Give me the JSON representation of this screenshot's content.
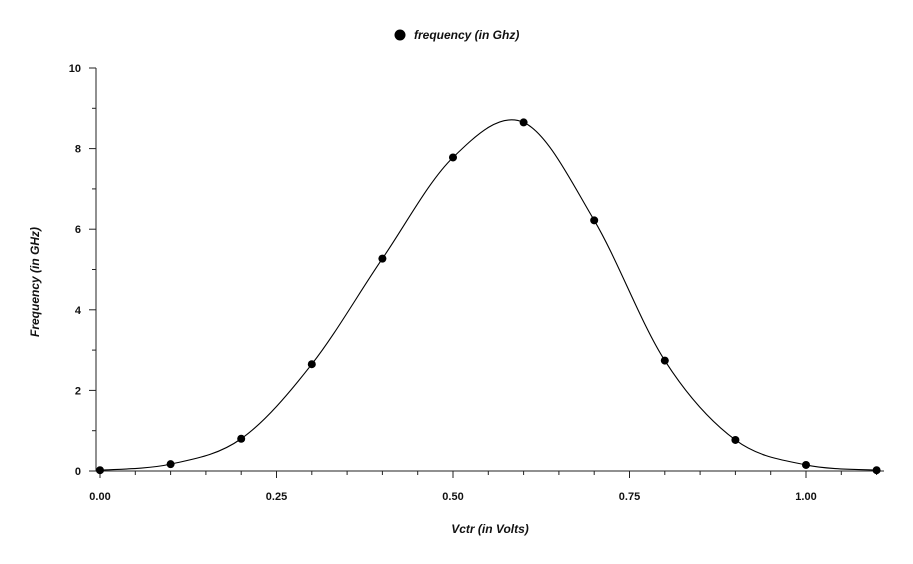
{
  "chart_data": {
    "type": "scatter",
    "title": "",
    "xlabel": "Vctr (in Volts)",
    "ylabel": "Frequency (in GHz)",
    "xlim": [
      0,
      1.1
    ],
    "ylim": [
      0,
      10
    ],
    "xticks": [
      0.0,
      0.25,
      0.5,
      0.75,
      1.0
    ],
    "xtick_labels": [
      "0.00",
      "0.25",
      "0.50",
      "0.75",
      "1.00"
    ],
    "yticks": [
      0,
      2,
      4,
      6,
      8,
      10
    ],
    "ytick_labels": [
      "0",
      "2",
      "4",
      "6",
      "8",
      "10"
    ],
    "grid": false,
    "legend_position": "top-center",
    "series": [
      {
        "name": "frequency (in Ghz)",
        "color": "#000000",
        "smooth_line": true,
        "x": [
          0.0,
          0.1,
          0.2,
          0.3,
          0.4,
          0.5,
          0.6,
          0.7,
          0.8,
          0.9,
          1.0,
          1.1
        ],
        "y": [
          0.02,
          0.17,
          0.8,
          2.65,
          5.27,
          7.78,
          8.65,
          6.22,
          2.74,
          0.77,
          0.15,
          0.02
        ]
      }
    ]
  }
}
